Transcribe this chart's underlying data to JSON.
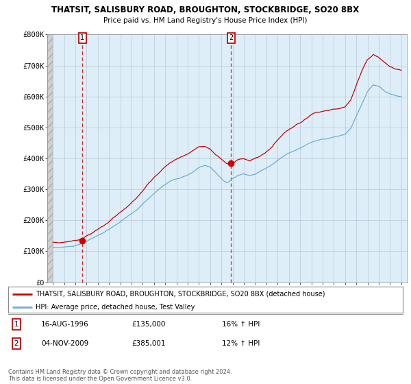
{
  "title_line1": "THATSIT, SALISBURY ROAD, BROUGHTON, STOCKBRIDGE, SO20 8BX",
  "title_line2": "Price paid vs. HM Land Registry's House Price Index (HPI)",
  "ylim": [
    0,
    800000
  ],
  "yticks": [
    0,
    100000,
    200000,
    300000,
    400000,
    500000,
    600000,
    700000,
    800000
  ],
  "ytick_labels": [
    "£0",
    "£100K",
    "£200K",
    "£300K",
    "£400K",
    "£500K",
    "£600K",
    "£700K",
    "£800K"
  ],
  "xlim_start": 1993.5,
  "xlim_end": 2025.5,
  "hpi_color": "#6baed6",
  "price_color": "#cc0000",
  "chart_bg": "#ddeeff",
  "hatch_bg": "#d0d0d0",
  "marker1_x": 1996.62,
  "marker1_y": 135000,
  "marker2_x": 2009.84,
  "marker2_y": 385001,
  "legend_line1": "THATSIT, SALISBURY ROAD, BROUGHTON, STOCKBRIDGE, SO20 8BX (detached house)",
  "legend_line2": "HPI: Average price, detached house, Test Valley",
  "table_row1": [
    "1",
    "16-AUG-1996",
    "£135,000",
    "16% ↑ HPI"
  ],
  "table_row2": [
    "2",
    "04-NOV-2009",
    "£385,001",
    "12% ↑ HPI"
  ],
  "footer": "Contains HM Land Registry data © Crown copyright and database right 2024.\nThis data is licensed under the Open Government Licence v3.0.",
  "grid_color": "#aaaacc",
  "background_color": "#ffffff",
  "hpi_points": [
    [
      1994.0,
      113000
    ],
    [
      1994.5,
      112000
    ],
    [
      1995.0,
      113500
    ],
    [
      1995.5,
      115000
    ],
    [
      1996.0,
      118000
    ],
    [
      1996.5,
      122000
    ],
    [
      1997.0,
      130000
    ],
    [
      1997.5,
      140000
    ],
    [
      1998.0,
      150000
    ],
    [
      1998.5,
      158000
    ],
    [
      1999.0,
      168000
    ],
    [
      1999.5,
      180000
    ],
    [
      2000.0,
      192000
    ],
    [
      2000.5,
      205000
    ],
    [
      2001.0,
      218000
    ],
    [
      2001.5,
      232000
    ],
    [
      2002.0,
      250000
    ],
    [
      2002.5,
      268000
    ],
    [
      2003.0,
      285000
    ],
    [
      2003.5,
      300000
    ],
    [
      2004.0,
      315000
    ],
    [
      2004.5,
      325000
    ],
    [
      2005.0,
      330000
    ],
    [
      2005.5,
      335000
    ],
    [
      2006.0,
      342000
    ],
    [
      2006.5,
      352000
    ],
    [
      2007.0,
      365000
    ],
    [
      2007.5,
      372000
    ],
    [
      2008.0,
      368000
    ],
    [
      2008.5,
      350000
    ],
    [
      2009.0,
      330000
    ],
    [
      2009.5,
      315000
    ],
    [
      2010.0,
      330000
    ],
    [
      2010.5,
      340000
    ],
    [
      2011.0,
      345000
    ],
    [
      2011.5,
      340000
    ],
    [
      2012.0,
      345000
    ],
    [
      2012.5,
      355000
    ],
    [
      2013.0,
      365000
    ],
    [
      2013.5,
      375000
    ],
    [
      2014.0,
      390000
    ],
    [
      2014.5,
      405000
    ],
    [
      2015.0,
      415000
    ],
    [
      2015.5,
      422000
    ],
    [
      2016.0,
      430000
    ],
    [
      2016.5,
      440000
    ],
    [
      2017.0,
      450000
    ],
    [
      2017.5,
      455000
    ],
    [
      2018.0,
      458000
    ],
    [
      2018.5,
      460000
    ],
    [
      2019.0,
      465000
    ],
    [
      2019.5,
      468000
    ],
    [
      2020.0,
      472000
    ],
    [
      2020.5,
      490000
    ],
    [
      2021.0,
      530000
    ],
    [
      2021.5,
      570000
    ],
    [
      2022.0,
      610000
    ],
    [
      2022.5,
      630000
    ],
    [
      2023.0,
      625000
    ],
    [
      2023.5,
      610000
    ],
    [
      2024.0,
      600000
    ],
    [
      2024.5,
      595000
    ],
    [
      2025.0,
      590000
    ]
  ],
  "price_points": [
    [
      1994.0,
      130000
    ],
    [
      1994.5,
      129000
    ],
    [
      1995.0,
      131000
    ],
    [
      1995.5,
      133000
    ],
    [
      1996.0,
      136000
    ],
    [
      1996.5,
      140000
    ],
    [
      1997.0,
      152000
    ],
    [
      1997.5,
      163000
    ],
    [
      1998.0,
      175000
    ],
    [
      1998.5,
      185000
    ],
    [
      1999.0,
      198000
    ],
    [
      1999.5,
      212000
    ],
    [
      2000.0,
      228000
    ],
    [
      2000.5,
      244000
    ],
    [
      2001.0,
      260000
    ],
    [
      2001.5,
      278000
    ],
    [
      2002.0,
      300000
    ],
    [
      2002.5,
      322000
    ],
    [
      2003.0,
      342000
    ],
    [
      2003.5,
      360000
    ],
    [
      2004.0,
      378000
    ],
    [
      2004.5,
      392000
    ],
    [
      2005.0,
      400000
    ],
    [
      2005.5,
      408000
    ],
    [
      2006.0,
      418000
    ],
    [
      2006.5,
      430000
    ],
    [
      2007.0,
      445000
    ],
    [
      2007.5,
      450000
    ],
    [
      2008.0,
      440000
    ],
    [
      2008.5,
      420000
    ],
    [
      2009.0,
      405000
    ],
    [
      2009.5,
      390000
    ],
    [
      2010.0,
      395000
    ],
    [
      2010.5,
      405000
    ],
    [
      2011.0,
      408000
    ],
    [
      2011.5,
      402000
    ],
    [
      2012.0,
      408000
    ],
    [
      2012.5,
      418000
    ],
    [
      2013.0,
      430000
    ],
    [
      2013.5,
      445000
    ],
    [
      2014.0,
      465000
    ],
    [
      2014.5,
      482000
    ],
    [
      2015.0,
      495000
    ],
    [
      2015.5,
      505000
    ],
    [
      2016.0,
      515000
    ],
    [
      2016.5,
      528000
    ],
    [
      2017.0,
      540000
    ],
    [
      2017.5,
      548000
    ],
    [
      2018.0,
      552000
    ],
    [
      2018.5,
      555000
    ],
    [
      2019.0,
      562000
    ],
    [
      2019.5,
      565000
    ],
    [
      2020.0,
      570000
    ],
    [
      2020.5,
      592000
    ],
    [
      2021.0,
      640000
    ],
    [
      2021.5,
      685000
    ],
    [
      2022.0,
      720000
    ],
    [
      2022.5,
      738000
    ],
    [
      2023.0,
      730000
    ],
    [
      2023.5,
      715000
    ],
    [
      2024.0,
      700000
    ],
    [
      2024.5,
      695000
    ],
    [
      2025.0,
      690000
    ]
  ]
}
